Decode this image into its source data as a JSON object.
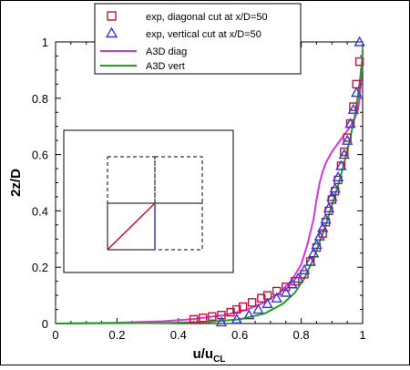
{
  "chart_data": {
    "type": "scatter",
    "title": "",
    "xlabel": "u/u",
    "xlabel_sub": "CL",
    "ylabel": "2z/D",
    "xlim": [
      0,
      1
    ],
    "ylim": [
      0,
      1
    ],
    "xticks": [
      "0",
      "0.2",
      "0.4",
      "0.6",
      "0.8",
      "1"
    ],
    "yticks": [
      "0",
      "0.2",
      "0.4",
      "0.6",
      "0.8",
      "1"
    ],
    "grid": false,
    "legend_position": "top-center",
    "series": [
      {
        "name": "exp, diagonal cut at x/D=50",
        "kind": "markers",
        "marker": "square",
        "color": "#c0143c",
        "x": [
          0.45,
          0.48,
          0.51,
          0.54,
          0.57,
          0.59,
          0.61,
          0.64,
          0.67,
          0.69,
          0.72,
          0.75,
          0.78,
          0.81,
          0.83,
          0.85,
          0.87,
          0.88,
          0.89,
          0.9,
          0.91,
          0.92,
          0.93,
          0.94,
          0.95,
          0.96,
          0.97,
          0.98,
          0.99
        ],
        "y": [
          0.015,
          0.02,
          0.025,
          0.03,
          0.04,
          0.05,
          0.06,
          0.075,
          0.09,
          0.1,
          0.115,
          0.13,
          0.15,
          0.175,
          0.22,
          0.27,
          0.32,
          0.36,
          0.4,
          0.44,
          0.47,
          0.51,
          0.56,
          0.61,
          0.66,
          0.71,
          0.77,
          0.85,
          0.93
        ]
      },
      {
        "name": "exp, vertical cut at x/D=50",
        "kind": "markers",
        "marker": "triangle",
        "color": "#3838d8",
        "x": [
          0.54,
          0.59,
          0.63,
          0.66,
          0.69,
          0.72,
          0.75,
          0.77,
          0.79,
          0.81,
          0.83,
          0.84,
          0.85,
          0.86,
          0.87,
          0.88,
          0.89,
          0.9,
          0.91,
          0.92,
          0.93,
          0.94,
          0.95,
          0.96,
          0.97,
          0.98,
          0.99
        ],
        "y": [
          0.005,
          0.015,
          0.03,
          0.05,
          0.07,
          0.09,
          0.11,
          0.14,
          0.16,
          0.19,
          0.22,
          0.25,
          0.28,
          0.31,
          0.34,
          0.37,
          0.41,
          0.45,
          0.48,
          0.52,
          0.56,
          0.6,
          0.65,
          0.71,
          0.76,
          0.82,
          1.0
        ]
      },
      {
        "name": "A3D diag",
        "kind": "line",
        "color": "#d936d9",
        "x": [
          0.0,
          0.2,
          0.35,
          0.45,
          0.55,
          0.62,
          0.68,
          0.73,
          0.77,
          0.8,
          0.82,
          0.84,
          0.85,
          0.86,
          0.87,
          0.88,
          0.9,
          0.92,
          0.94,
          0.96,
          0.975,
          0.985,
          0.99,
          0.995,
          1.0
        ],
        "y": [
          0.0,
          0.003,
          0.008,
          0.016,
          0.03,
          0.048,
          0.075,
          0.11,
          0.155,
          0.21,
          0.28,
          0.37,
          0.44,
          0.5,
          0.54,
          0.57,
          0.61,
          0.64,
          0.67,
          0.7,
          0.73,
          0.76,
          0.8,
          0.86,
          0.97
        ]
      },
      {
        "name": "A3D vert",
        "kind": "line",
        "color": "#22a022",
        "x": [
          0.0,
          0.35,
          0.5,
          0.6,
          0.68,
          0.74,
          0.78,
          0.81,
          0.84,
          0.86,
          0.88,
          0.9,
          0.92,
          0.94,
          0.96,
          0.975,
          0.985,
          0.993,
          0.998,
          1.0
        ],
        "y": [
          0.0,
          0.002,
          0.006,
          0.015,
          0.035,
          0.07,
          0.11,
          0.16,
          0.23,
          0.29,
          0.35,
          0.42,
          0.49,
          0.57,
          0.66,
          0.74,
          0.81,
          0.88,
          0.93,
          0.97
        ]
      }
    ]
  }
}
